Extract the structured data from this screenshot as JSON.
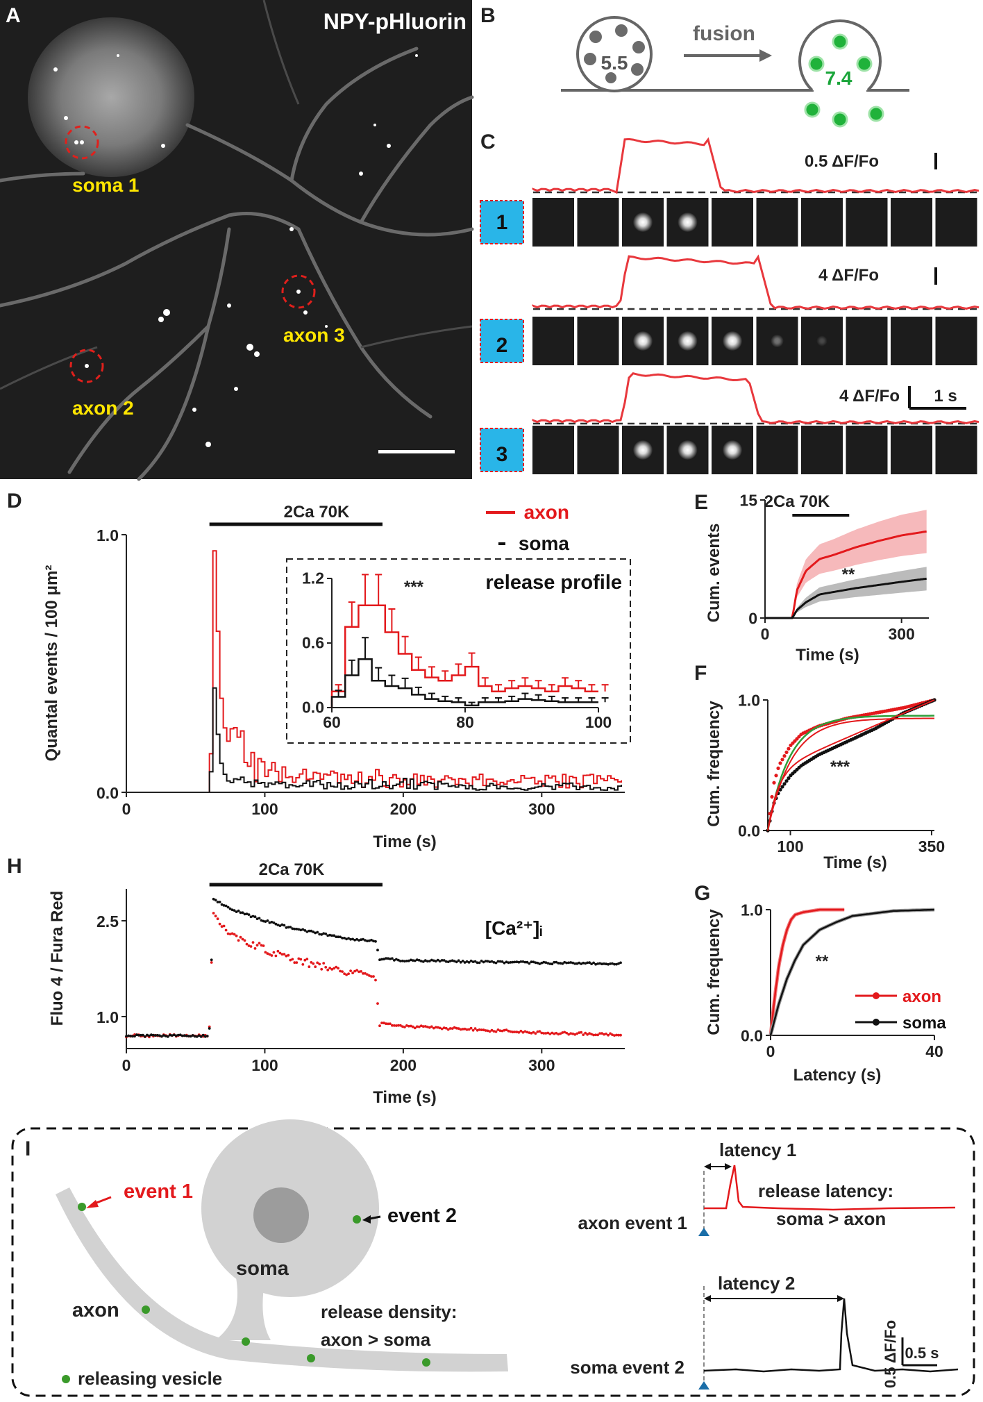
{
  "panels": {
    "A": "A",
    "B": "B",
    "C": "C",
    "D": "D",
    "E": "E",
    "F": "F",
    "G": "G",
    "H": "H",
    "I": "I"
  },
  "panel_a": {
    "title": "NPY-pHluorin",
    "rois": [
      "soma 1",
      "axon 3",
      "axon 2"
    ]
  },
  "panel_b": {
    "ph_inside": "5.5",
    "ph_outside": "7.4",
    "arrow_label": "fusion"
  },
  "panel_c": {
    "scale_labels": [
      "0.5 ΔF/Fo",
      "4 ΔF/Fo",
      "4 ΔF/Fo"
    ],
    "time_scale": "1 s",
    "event_numbers": [
      "1",
      "2",
      "3"
    ],
    "colors": {
      "trace": "#e8383d",
      "label_box": "#29b5e8"
    }
  },
  "colors": {
    "axon": "#e3191c",
    "soma": "#111111",
    "fit": "#2e9e3a",
    "vesicle": "#3a9a2a"
  },
  "legend": {
    "axon": "axon",
    "soma": "soma"
  },
  "chart_data": [
    {
      "id": "D",
      "type": "line",
      "stimulus": "2Ca 70K",
      "stimulus_window": [
        60,
        185
      ],
      "xlabel": "Time (s)",
      "ylabel": "Quantal events / 100 μm²",
      "xlim": [
        0,
        360
      ],
      "ylim": [
        0,
        1.0
      ],
      "xticks": [
        "0",
        "100",
        "200",
        "300"
      ],
      "yticks": [
        "0.0",
        "1.0"
      ],
      "series": [
        {
          "name": "axon",
          "x": [
            60,
            62,
            64,
            66,
            68,
            70,
            75,
            80,
            90,
            100,
            110,
            120,
            140,
            160,
            180,
            200,
            250,
            300,
            355
          ],
          "values": [
            0.15,
            1.0,
            0.75,
            0.5,
            0.32,
            0.25,
            0.2,
            0.15,
            0.1,
            0.08,
            0.06,
            0.05,
            0.05,
            0.04,
            0.05,
            0.04,
            0.04,
            0.04,
            0.04
          ]
        },
        {
          "name": "soma",
          "x": [
            60,
            62,
            64,
            66,
            68,
            70,
            75,
            80,
            90,
            100,
            110,
            120,
            140,
            160,
            180,
            200,
            250,
            300,
            355
          ],
          "values": [
            0.08,
            0.44,
            0.3,
            0.15,
            0.1,
            0.07,
            0.05,
            0.04,
            0.03,
            0.03,
            0.03,
            0.02,
            0.03,
            0.02,
            0.03,
            0.03,
            0.02,
            0.02,
            0.02
          ]
        }
      ],
      "inset": {
        "title": "release profile",
        "annotation": "***",
        "xlim": [
          60,
          100
        ],
        "ylim": [
          0,
          1.2
        ],
        "xticks": [
          "60",
          "80",
          "100"
        ],
        "yticks": [
          "0.0",
          "0.6",
          "1.2"
        ],
        "series": [
          {
            "name": "axon",
            "x": [
              60,
              62,
              64,
              66,
              68,
              70,
              72,
              74,
              76,
              78,
              80,
              82,
              84,
              86,
              88,
              90,
              92,
              94,
              96,
              98,
              100
            ],
            "values": [
              0.15,
              0.75,
              0.95,
              0.95,
              0.7,
              0.5,
              0.35,
              0.28,
              0.25,
              0.3,
              0.38,
              0.2,
              0.15,
              0.18,
              0.2,
              0.18,
              0.15,
              0.2,
              0.18,
              0.15,
              0.15
            ]
          },
          {
            "name": "soma",
            "x": [
              60,
              62,
              64,
              66,
              68,
              70,
              72,
              74,
              76,
              78,
              80,
              82,
              84,
              86,
              88,
              90,
              92,
              94,
              96,
              98,
              100
            ],
            "values": [
              0.1,
              0.3,
              0.45,
              0.25,
              0.2,
              0.18,
              0.12,
              0.08,
              0.06,
              0.05,
              0.02,
              0.05,
              0.05,
              0.06,
              0.08,
              0.07,
              0.06,
              0.05,
              0.05,
              0.05,
              0.05
            ]
          }
        ]
      }
    },
    {
      "id": "E",
      "type": "line",
      "stimulus": "2Ca 70K",
      "stimulus_window": [
        60,
        185
      ],
      "xlabel": "Time (s)",
      "ylabel": "Cum. events",
      "xlim": [
        0,
        360
      ],
      "ylim": [
        0,
        15
      ],
      "xticks": [
        "0",
        "300"
      ],
      "yticks": [
        "0",
        "15"
      ],
      "annotation": "**",
      "series": [
        {
          "name": "axon",
          "x": [
            0,
            60,
            70,
            90,
            120,
            150,
            200,
            250,
            300,
            355
          ],
          "values": [
            0,
            0,
            3.5,
            6,
            7.5,
            8,
            9,
            9.8,
            10.5,
            11
          ]
        },
        {
          "name": "soma",
          "x": [
            0,
            60,
            70,
            90,
            120,
            150,
            200,
            250,
            300,
            355
          ],
          "values": [
            0,
            0,
            1,
            2,
            3,
            3.3,
            3.8,
            4.2,
            4.6,
            5
          ]
        }
      ]
    },
    {
      "id": "F",
      "type": "line",
      "xlabel": "Time (s)",
      "ylabel": "Cum. frequency",
      "xlim": [
        60,
        355
      ],
      "ylim": [
        0,
        1.0
      ],
      "xticks": [
        "100",
        "350"
      ],
      "yticks": [
        "0.0",
        "1.0"
      ],
      "annotation": "***",
      "series": [
        {
          "name": "axon",
          "x": [
            60,
            70,
            80,
            100,
            120,
            150,
            200,
            250,
            300,
            355
          ],
          "values": [
            0,
            0.35,
            0.5,
            0.65,
            0.74,
            0.8,
            0.86,
            0.9,
            0.94,
            1.0
          ]
        },
        {
          "name": "soma",
          "x": [
            60,
            70,
            80,
            100,
            120,
            150,
            200,
            250,
            300,
            355
          ],
          "values": [
            0,
            0.2,
            0.3,
            0.42,
            0.5,
            0.58,
            0.68,
            0.78,
            0.9,
            1.0
          ]
        }
      ]
    },
    {
      "id": "G",
      "type": "line",
      "xlabel": "Latency (s)",
      "ylabel": "Cum. frequency",
      "xlim": [
        0,
        40
      ],
      "ylim": [
        0,
        1.0
      ],
      "xticks": [
        "0",
        "40"
      ],
      "yticks": [
        "0.0",
        "1.0"
      ],
      "annotation": "**",
      "series": [
        {
          "name": "axon",
          "x": [
            0,
            1,
            2,
            3,
            4,
            5,
            6,
            8,
            12,
            18
          ],
          "values": [
            0,
            0.3,
            0.55,
            0.72,
            0.84,
            0.92,
            0.96,
            0.98,
            1.0,
            1.0
          ]
        },
        {
          "name": "soma",
          "x": [
            0,
            2,
            4,
            6,
            8,
            12,
            16,
            20,
            30,
            40
          ],
          "values": [
            0,
            0.25,
            0.45,
            0.6,
            0.72,
            0.84,
            0.9,
            0.95,
            0.99,
            1.0
          ]
        }
      ]
    },
    {
      "id": "H",
      "type": "scatter",
      "stimulus": "2Ca 70K",
      "stimulus_window": [
        60,
        185
      ],
      "xlabel": "Time (s)",
      "ylabel": "Fluo 4 / Fura Red",
      "annotation": "[Ca²⁺]ᵢ",
      "xlim": [
        0,
        360
      ],
      "ylim": [
        0.5,
        3.0
      ],
      "xticks": [
        "0",
        "100",
        "200",
        "300"
      ],
      "yticks": [
        "1.0",
        "2.5"
      ],
      "series": [
        {
          "name": "axon",
          "x": [
            0,
            30,
            59,
            61,
            62,
            70,
            80,
            100,
            120,
            140,
            160,
            180,
            183,
            190,
            200,
            250,
            300,
            355
          ],
          "values": [
            0.7,
            0.7,
            0.7,
            1.0,
            2.6,
            2.4,
            2.25,
            2.05,
            1.9,
            1.8,
            1.7,
            1.6,
            0.9,
            0.88,
            0.85,
            0.8,
            0.75,
            0.72
          ]
        },
        {
          "name": "soma",
          "x": [
            0,
            30,
            59,
            61,
            62,
            70,
            80,
            100,
            120,
            140,
            160,
            180,
            183,
            190,
            200,
            250,
            300,
            355
          ],
          "values": [
            0.7,
            0.7,
            0.7,
            0.9,
            2.85,
            2.75,
            2.65,
            2.5,
            2.38,
            2.3,
            2.22,
            2.18,
            1.9,
            1.9,
            1.88,
            1.86,
            1.84,
            1.83
          ]
        }
      ]
    }
  ],
  "panel_i": {
    "event1": "event 1",
    "event2": "event 2",
    "soma": "soma",
    "axon": "axon",
    "legend": "releasing vesicle",
    "density_l1": "release density:",
    "density_l2": "axon > soma",
    "latency1": "latency 1",
    "latency2": "latency 2",
    "rl_l1": "release latency:",
    "rl_l2": "soma > axon",
    "axon_event": "axon event 1",
    "soma_event": "soma event 2",
    "scale_y": "0.5 ΔF/Fo",
    "scale_x": "0.5 s"
  }
}
